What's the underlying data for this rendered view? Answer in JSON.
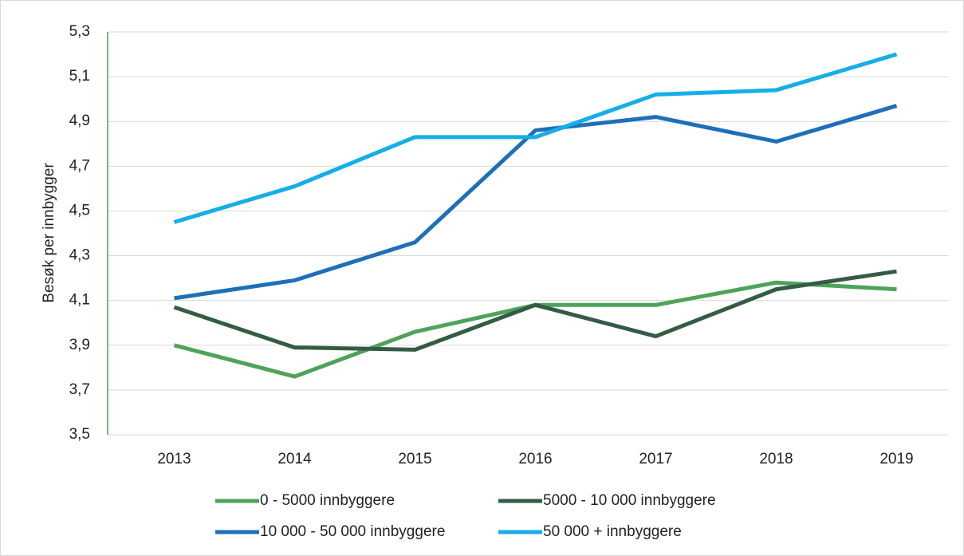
{
  "chart_data": {
    "type": "line",
    "y_label": "Besøk per innbygger",
    "categories": [
      "2013",
      "2014",
      "2015",
      "2016",
      "2017",
      "2018",
      "2019"
    ],
    "series": [
      {
        "name": "0 - 5000 innbyggere",
        "color": "#4ea35a",
        "values": [
          3.9,
          3.76,
          3.96,
          4.08,
          4.08,
          4.18,
          4.15
        ]
      },
      {
        "name": "5000 - 10 000 innbyggere",
        "color": "#345c45",
        "values": [
          4.07,
          3.89,
          3.88,
          4.08,
          3.94,
          4.15,
          4.23
        ]
      },
      {
        "name": "10 000 - 50 000 innbyggere",
        "color": "#1f6fb8",
        "values": [
          4.11,
          4.19,
          4.36,
          4.86,
          4.92,
          4.81,
          4.97
        ]
      },
      {
        "name": "50 000 + innbyggere",
        "color": "#15aee8",
        "values": [
          4.45,
          4.61,
          4.83,
          4.83,
          5.02,
          5.04,
          5.2
        ]
      }
    ],
    "ylim": [
      3.5,
      5.3
    ],
    "yticks": [
      {
        "value": 3.5,
        "label": "3,5"
      },
      {
        "value": 3.7,
        "label": "3,7"
      },
      {
        "value": 3.9,
        "label": "3,9"
      },
      {
        "value": 4.1,
        "label": "4,1"
      },
      {
        "value": 4.3,
        "label": "4,3"
      },
      {
        "value": 4.5,
        "label": "4,5"
      },
      {
        "value": 4.7,
        "label": "4,7"
      },
      {
        "value": 4.9,
        "label": "4,9"
      },
      {
        "value": 5.1,
        "label": "5,1"
      },
      {
        "value": 5.3,
        "label": "5,3"
      }
    ],
    "grid": true,
    "legend": "bottom"
  }
}
